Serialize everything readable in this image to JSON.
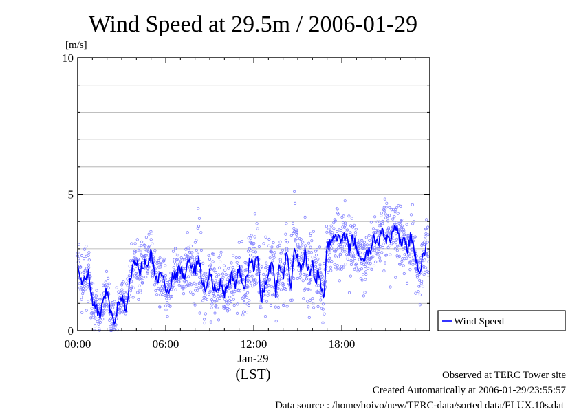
{
  "chart_data": {
    "type": "line",
    "title": "Wind Speed at 29.5m / 2006-01-29",
    "ylabel": "[m/s]",
    "xlabel": "(LST)",
    "date_label": "Jan-29",
    "ylim": [
      0,
      10
    ],
    "xlim": [
      0,
      24
    ],
    "x_unit": "hour",
    "y_ticks": [
      "0",
      "5",
      "10"
    ],
    "x_ticks": [
      {
        "value": 0,
        "label": "00:00"
      },
      {
        "value": 6,
        "label": "06:00"
      },
      {
        "value": 12,
        "label": "12:00"
      },
      {
        "value": 18,
        "label": "18:00"
      }
    ],
    "grid": true,
    "legend_position": "right",
    "series": [
      {
        "name": "Wind Speed",
        "color": "#0000ff",
        "scatter_color": "#8080ff",
        "x": [
          0.0,
          0.25,
          0.5,
          0.75,
          1.0,
          1.25,
          1.5,
          1.75,
          2.0,
          2.25,
          2.5,
          2.75,
          3.0,
          3.25,
          3.5,
          3.75,
          4.0,
          4.25,
          4.5,
          4.75,
          5.0,
          5.25,
          5.5,
          5.75,
          6.0,
          6.25,
          6.5,
          6.75,
          7.0,
          7.25,
          7.5,
          7.75,
          8.0,
          8.25,
          8.5,
          8.75,
          9.0,
          9.25,
          9.5,
          9.75,
          10.0,
          10.25,
          10.5,
          10.75,
          11.0,
          11.25,
          11.5,
          11.75,
          12.0,
          12.25,
          12.5,
          12.75,
          13.0,
          13.25,
          13.5,
          13.75,
          14.0,
          14.25,
          14.5,
          14.75,
          15.0,
          15.25,
          15.5,
          15.75,
          16.0,
          16.25,
          16.5,
          16.75,
          17.0,
          17.25,
          17.5,
          17.75,
          18.0,
          18.25,
          18.5,
          18.75,
          19.0,
          19.25,
          19.5,
          19.75,
          20.0,
          20.25,
          20.5,
          20.75,
          21.0,
          21.25,
          21.5,
          21.75,
          22.0,
          22.25,
          22.5,
          22.75,
          23.0,
          23.25,
          23.5,
          23.75
        ],
        "values": [
          2.6,
          1.6,
          1.9,
          2.1,
          1.0,
          0.8,
          0.5,
          1.0,
          1.5,
          0.6,
          0.4,
          0.9,
          1.2,
          0.8,
          1.6,
          2.3,
          2.6,
          2.2,
          2.5,
          2.3,
          2.9,
          2.0,
          1.9,
          2.1,
          1.6,
          1.5,
          2.0,
          2.0,
          2.3,
          1.9,
          2.4,
          2.5,
          2.2,
          2.7,
          1.8,
          1.4,
          2.2,
          1.6,
          1.3,
          1.8,
          1.4,
          1.5,
          2.0,
          1.7,
          2.3,
          1.5,
          1.9,
          2.6,
          2.3,
          2.8,
          1.2,
          1.6,
          2.0,
          2.7,
          1.3,
          2.4,
          1.9,
          2.8,
          1.5,
          3.0,
          2.6,
          2.2,
          2.9,
          2.0,
          2.4,
          1.9,
          2.1,
          1.1,
          3.2,
          3.1,
          3.5,
          3.4,
          3.2,
          3.5,
          2.9,
          3.4,
          3.0,
          2.8,
          2.4,
          2.9,
          3.0,
          3.4,
          3.2,
          3.8,
          3.4,
          3.2,
          3.6,
          3.7,
          3.2,
          3.4,
          3.0,
          3.5,
          2.8,
          2.0,
          2.6,
          3.1
        ]
      }
    ]
  },
  "footer": {
    "line1": "Observed at TERC Tower site",
    "line2": "Created Automatically at 2006-01-29/23:55:57",
    "line3": "Data source : /home/hoivo/new/TERC-data/sorted  data/FLUX.10s.dat"
  }
}
